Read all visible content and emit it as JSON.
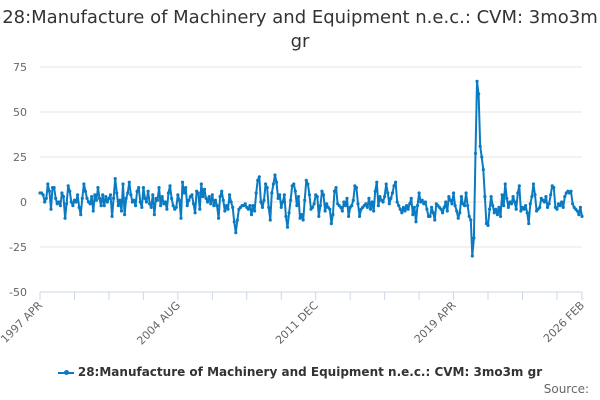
{
  "chart_data": {
    "type": "line",
    "title": "28:Manufacture of Machinery and Equipment n.e.c.: CVM: 3mo3m gr",
    "xlabel": "",
    "ylabel": "",
    "ylim": [
      -50,
      75
    ],
    "yticks": [
      75,
      50,
      25,
      0,
      -25,
      -50
    ],
    "x_start": "1997 APR",
    "x_end": "2026 FEB",
    "x_tick_labels": [
      "1997 APR",
      "2004 AUG",
      "2011 DEC",
      "2019 APR",
      "2026 FEB"
    ],
    "grid": true,
    "legend_position": "bottom",
    "series": [
      {
        "name": "28:Manufacture of Machinery and Equipment n.e.c.: CVM: 3mo3m gr",
        "color": "#0a7bc2",
        "frequency": "monthly",
        "values": [
          5,
          5,
          4,
          0,
          2,
          10,
          6,
          -4,
          8,
          8,
          2,
          -1,
          0,
          -2,
          5,
          3,
          -9,
          -1,
          9,
          6,
          0,
          -2,
          1,
          0,
          4,
          -3,
          -7,
          2,
          10,
          6,
          2,
          0,
          -1,
          3,
          -5,
          4,
          1,
          8,
          2,
          -2,
          4,
          -2,
          3,
          0,
          2,
          4,
          -8,
          2,
          13,
          5,
          -2,
          1,
          -5,
          10,
          -7,
          2,
          5,
          11,
          4,
          0,
          1,
          -2,
          6,
          8,
          0,
          -3,
          8,
          2,
          0,
          6,
          -1,
          -3,
          4,
          -7,
          2,
          1,
          8,
          -2,
          3,
          -1,
          0,
          -4,
          5,
          9,
          2,
          -2,
          -4,
          -3,
          4,
          1,
          -9,
          11,
          5,
          8,
          -2,
          1,
          3,
          4,
          -1,
          -6,
          6,
          5,
          -4,
          10,
          3,
          7,
          2,
          0,
          3,
          -1,
          4,
          -2,
          1,
          -2,
          -9,
          3,
          6,
          1,
          -5,
          -2,
          -4,
          4,
          0,
          -3,
          -11,
          -17,
          -10,
          -4,
          -3,
          -2,
          -2,
          -1,
          -3,
          -4,
          -2,
          -7,
          -2,
          -5,
          5,
          12,
          14,
          0,
          -3,
          1,
          10,
          8,
          -3,
          -10,
          5,
          10,
          15,
          11,
          2,
          4,
          -3,
          0,
          4,
          -8,
          -14,
          -6,
          1,
          9,
          10,
          6,
          -2,
          3,
          -9,
          -7,
          -10,
          1,
          12,
          10,
          4,
          -4,
          -3,
          -1,
          4,
          3,
          -8,
          -2,
          6,
          4,
          -5,
          -1,
          -3,
          -4,
          -12,
          -7,
          6,
          8,
          -1,
          -2,
          -3,
          -5,
          0,
          -2,
          2,
          -8,
          -3,
          -2,
          1,
          9,
          8,
          -1,
          -8,
          -4,
          -3,
          -2,
          -1,
          -3,
          2,
          -4,
          0,
          -5,
          6,
          11,
          -2,
          3,
          1,
          0,
          3,
          10,
          5,
          -1,
          2,
          5,
          9,
          11,
          0,
          -2,
          -4,
          -6,
          -3,
          -5,
          -2,
          -4,
          -1,
          2,
          -7,
          -3,
          -11,
          -2,
          5,
          0,
          1,
          -1,
          0,
          -4,
          -8,
          -8,
          -3,
          -6,
          -10,
          -1,
          -2,
          -3,
          -4,
          -6,
          -3,
          0,
          -5,
          3,
          1,
          -1,
          5,
          -2,
          -5,
          -9,
          -6,
          3,
          -1,
          -2,
          5,
          -2,
          -8,
          -10,
          -30,
          -20,
          27,
          67,
          60,
          31,
          25,
          18,
          3,
          -12,
          -13,
          -4,
          3,
          -2,
          -6,
          -4,
          -7,
          -3,
          -8,
          4,
          -2,
          10,
          2,
          -3,
          0,
          -1,
          3,
          0,
          -4,
          5,
          9,
          -5,
          -3,
          -4,
          -2,
          -6,
          -12,
          -1,
          3,
          10,
          4,
          -5,
          -4,
          -3,
          2,
          1,
          0,
          3,
          -3,
          -1,
          4,
          9,
          8,
          -3,
          -4,
          -1,
          -2,
          0,
          -3,
          3,
          5,
          6,
          5,
          6,
          -1,
          -3,
          -4,
          -5,
          -7,
          -3,
          -8
        ]
      }
    ]
  },
  "footer": {
    "source_label": "Source:"
  }
}
